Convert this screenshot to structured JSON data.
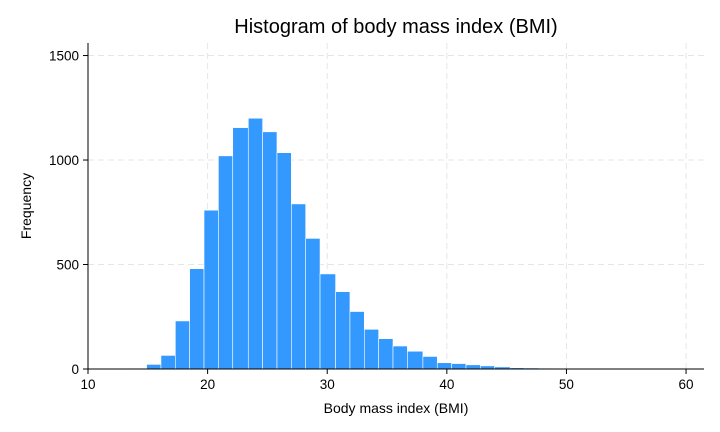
{
  "chart_data": {
    "type": "bar",
    "title": "Histogram of body mass index (BMI)",
    "xlabel": "Body mass index (BMI)",
    "ylabel": "Frequency",
    "xlim": [
      10,
      61.5
    ],
    "ylim": [
      0,
      1560
    ],
    "xticks": [
      10,
      20,
      30,
      40,
      50,
      60
    ],
    "yticks": [
      0,
      500,
      1000,
      1500
    ],
    "grid": true,
    "bar_color": "#3399ff",
    "bins": [
      {
        "x0": 12.4,
        "x1": 13.6,
        "value": 1
      },
      {
        "x0": 13.6,
        "x1": 14.9,
        "value": 3
      },
      {
        "x0": 14.9,
        "x1": 16.1,
        "value": 22
      },
      {
        "x0": 16.1,
        "x1": 17.3,
        "value": 65
      },
      {
        "x0": 17.3,
        "x1": 18.5,
        "value": 230
      },
      {
        "x0": 18.5,
        "x1": 19.7,
        "value": 480
      },
      {
        "x0": 19.7,
        "x1": 20.9,
        "value": 760
      },
      {
        "x0": 20.9,
        "x1": 22.1,
        "value": 1020
      },
      {
        "x0": 22.1,
        "x1": 23.4,
        "value": 1155
      },
      {
        "x0": 23.4,
        "x1": 24.6,
        "value": 1200
      },
      {
        "x0": 24.6,
        "x1": 25.8,
        "value": 1135
      },
      {
        "x0": 25.8,
        "x1": 27.0,
        "value": 1035
      },
      {
        "x0": 27.0,
        "x1": 28.2,
        "value": 790
      },
      {
        "x0": 28.2,
        "x1": 29.4,
        "value": 625
      },
      {
        "x0": 29.4,
        "x1": 30.7,
        "value": 455
      },
      {
        "x0": 30.7,
        "x1": 31.9,
        "value": 370
      },
      {
        "x0": 31.9,
        "x1": 33.1,
        "value": 275
      },
      {
        "x0": 33.1,
        "x1": 34.3,
        "value": 190
      },
      {
        "x0": 34.3,
        "x1": 35.5,
        "value": 145
      },
      {
        "x0": 35.5,
        "x1": 36.7,
        "value": 110
      },
      {
        "x0": 36.7,
        "x1": 38.0,
        "value": 85
      },
      {
        "x0": 38.0,
        "x1": 39.2,
        "value": 60
      },
      {
        "x0": 39.2,
        "x1": 40.4,
        "value": 30
      },
      {
        "x0": 40.4,
        "x1": 41.6,
        "value": 26
      },
      {
        "x0": 41.6,
        "x1": 42.8,
        "value": 20
      },
      {
        "x0": 42.8,
        "x1": 44.0,
        "value": 15
      },
      {
        "x0": 44.0,
        "x1": 45.3,
        "value": 10
      },
      {
        "x0": 45.3,
        "x1": 46.5,
        "value": 6
      },
      {
        "x0": 46.5,
        "x1": 47.7,
        "value": 5
      },
      {
        "x0": 47.7,
        "x1": 48.9,
        "value": 4
      },
      {
        "x0": 48.9,
        "x1": 50.1,
        "value": 2
      },
      {
        "x0": 50.1,
        "x1": 51.3,
        "value": 2
      },
      {
        "x0": 51.3,
        "x1": 52.6,
        "value": 1
      },
      {
        "x0": 52.6,
        "x1": 53.8,
        "value": 1
      },
      {
        "x0": 53.8,
        "x1": 55.0,
        "value": 1
      },
      {
        "x0": 55.0,
        "x1": 56.2,
        "value": 1
      },
      {
        "x0": 56.2,
        "x1": 57.4,
        "value": 1
      },
      {
        "x0": 57.4,
        "x1": 58.6,
        "value": 0
      },
      {
        "x0": 58.6,
        "x1": 59.9,
        "value": 0
      },
      {
        "x0": 59.9,
        "x1": 61.1,
        "value": 1
      }
    ]
  }
}
